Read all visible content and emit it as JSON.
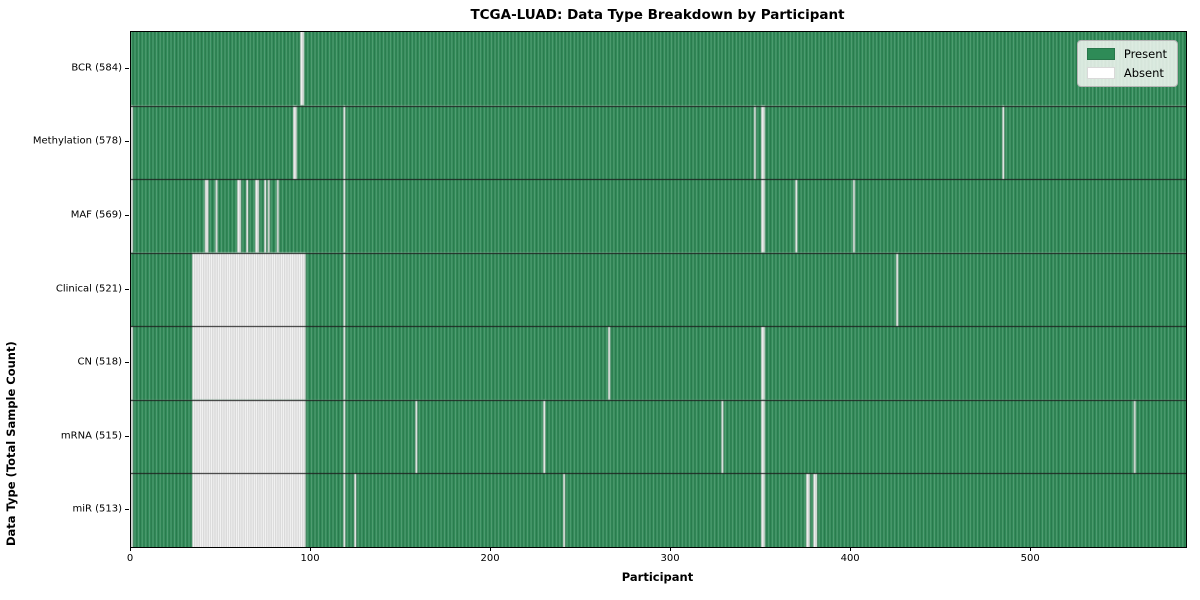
{
  "title": "TCGA-LUAD: Data Type Breakdown by Participant",
  "chart_data": {
    "type": "heatmap",
    "title": "TCGA-LUAD: Data Type Breakdown by Participant",
    "xlabel": "Participant",
    "ylabel": "Data Type (Total Sample Count)",
    "x_ticks": [
      0,
      100,
      200,
      300,
      400,
      500
    ],
    "x_range": [
      0,
      586
    ],
    "n_participants": 586,
    "grid": false,
    "legend_position": "upper right",
    "legend": [
      {
        "label": "Present",
        "color": "#2E8B57"
      },
      {
        "label": "Absent",
        "color": "#FFFFFF"
      }
    ],
    "colors": {
      "present": "#2E8B57",
      "absent": "#FCFCFC",
      "row_divider": "#1a1a1a",
      "plot_border": "#000000"
    },
    "rows": [
      {
        "label": "BCR (584)",
        "name": "BCR",
        "present_count": 584,
        "absent_ranges": [
          [
            94,
            95
          ]
        ]
      },
      {
        "label": "Methylation (578)",
        "name": "Methylation",
        "present_count": 578,
        "absent_ranges": [
          [
            0,
            0
          ],
          [
            90,
            91
          ],
          [
            118,
            118
          ],
          [
            346,
            346
          ],
          [
            350,
            351
          ],
          [
            484,
            484
          ]
        ]
      },
      {
        "label": "MAF (569)",
        "name": "MAF",
        "present_count": 569,
        "absent_ranges": [
          [
            0,
            0
          ],
          [
            41,
            42
          ],
          [
            47,
            47
          ],
          [
            59,
            60
          ],
          [
            64,
            64
          ],
          [
            69,
            70
          ],
          [
            74,
            74
          ],
          [
            76,
            76
          ],
          [
            81,
            81
          ],
          [
            118,
            118
          ],
          [
            350,
            351
          ],
          [
            369,
            369
          ],
          [
            401,
            401
          ]
        ]
      },
      {
        "label": "Clinical (521)",
        "name": "Clinical",
        "present_count": 521,
        "absent_ranges": [
          [
            34,
            96
          ],
          [
            118,
            118
          ],
          [
            425,
            425
          ]
        ]
      },
      {
        "label": "CN (518)",
        "name": "CN",
        "present_count": 518,
        "absent_ranges": [
          [
            0,
            0
          ],
          [
            34,
            96
          ],
          [
            118,
            118
          ],
          [
            265,
            265
          ],
          [
            350,
            351
          ]
        ]
      },
      {
        "label": "mRNA (515)",
        "name": "mRNA",
        "present_count": 515,
        "absent_ranges": [
          [
            0,
            0
          ],
          [
            34,
            96
          ],
          [
            118,
            118
          ],
          [
            158,
            158
          ],
          [
            229,
            229
          ],
          [
            328,
            328
          ],
          [
            350,
            351
          ],
          [
            557,
            557
          ]
        ]
      },
      {
        "label": "miR (513)",
        "name": "miR",
        "present_count": 513,
        "absent_ranges": [
          [
            0,
            0
          ],
          [
            34,
            96
          ],
          [
            118,
            118
          ],
          [
            124,
            124
          ],
          [
            240,
            240
          ],
          [
            350,
            351
          ],
          [
            375,
            376
          ],
          [
            379,
            380
          ]
        ]
      }
    ]
  }
}
